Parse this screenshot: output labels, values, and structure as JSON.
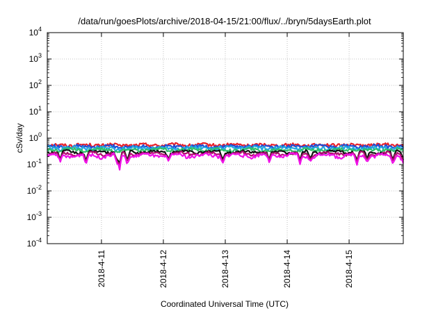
{
  "chart_data": {
    "type": "area",
    "title": "/data/run/goesPlots/archive/2018-04-15/21:00/flux/../bryn/5daysEarth.plot",
    "xlabel": "Coordinated Universal Time (UTC)",
    "ylabel": "cSv/day",
    "yscale": "log",
    "ylim": [
      0.0001,
      10000
    ],
    "y_ticks": [
      {
        "base": "10",
        "exp": "4",
        "value": 10000
      },
      {
        "base": "10",
        "exp": "3",
        "value": 1000
      },
      {
        "base": "10",
        "exp": "2",
        "value": 100
      },
      {
        "base": "10",
        "exp": "1",
        "value": 10
      },
      {
        "base": "10",
        "exp": "0",
        "value": 1
      },
      {
        "base": "10",
        "exp": "-1",
        "value": 0.1
      },
      {
        "base": "10",
        "exp": "-2",
        "value": 0.01
      },
      {
        "base": "10",
        "exp": "-3",
        "value": 0.001
      },
      {
        "base": "10",
        "exp": "-4",
        "value": 0.0001
      }
    ],
    "xlim": [
      "2018-04-10T03:00",
      "2018-04-15T21:00"
    ],
    "x_ticks": [
      {
        "label": "2018-4-11",
        "date": "2018-04-11"
      },
      {
        "label": "2018-4-12",
        "date": "2018-04-12"
      },
      {
        "label": "2018-4-13",
        "date": "2018-04-13"
      },
      {
        "label": "2018-4-14",
        "date": "2018-04-14"
      },
      {
        "label": "2018-4-15",
        "date": "2018-04-15"
      }
    ],
    "grid": true,
    "series": [
      {
        "color": "#e8202a",
        "base": 0.55,
        "amp": 0.16,
        "low": 0.42,
        "high": 0.72
      },
      {
        "color": "#1f4fd8",
        "base": 0.48,
        "amp": 0.15,
        "low": 0.35,
        "high": 0.66
      },
      {
        "color": "#22a7e0",
        "base": 0.42,
        "amp": 0.14,
        "low": 0.3,
        "high": 0.6
      },
      {
        "color": "#2fbf6a",
        "base": 0.36,
        "amp": 0.1,
        "low": 0.28,
        "high": 0.46
      },
      {
        "color": "#111111",
        "base": 0.3,
        "amp": 0.07,
        "low": 0.24,
        "high": 0.36
      },
      {
        "color": "#b0106f",
        "base": 0.26,
        "amp": 0.06,
        "low": 0.2,
        "high": 0.32
      },
      {
        "color": "#f012e8",
        "base": 0.22,
        "amp": 0.06,
        "low": 0.15,
        "high": 0.28
      }
    ],
    "dips": [
      {
        "time": "2018-04-10T08:00",
        "value": 0.12
      },
      {
        "time": "2018-04-10T18:00",
        "value": 0.09
      },
      {
        "time": "2018-04-11T06:00",
        "value": 0.11
      },
      {
        "time": "2018-04-11T07:00",
        "value": 0.055
      },
      {
        "time": "2018-04-11T10:00",
        "value": 0.1
      },
      {
        "time": "2018-04-12T02:00",
        "value": 0.13
      },
      {
        "time": "2018-04-12T23:00",
        "value": 0.11
      },
      {
        "time": "2018-04-13T17:00",
        "value": 0.12
      },
      {
        "time": "2018-04-14T05:00",
        "value": 0.1
      },
      {
        "time": "2018-04-14T09:00",
        "value": 0.13
      },
      {
        "time": "2018-04-15T03:00",
        "value": 0.09
      },
      {
        "time": "2018-04-15T07:00",
        "value": 0.12
      },
      {
        "time": "2018-04-15T17:00",
        "value": 0.1
      },
      {
        "time": "2018-04-15T21:00",
        "value": 0.11
      }
    ]
  }
}
